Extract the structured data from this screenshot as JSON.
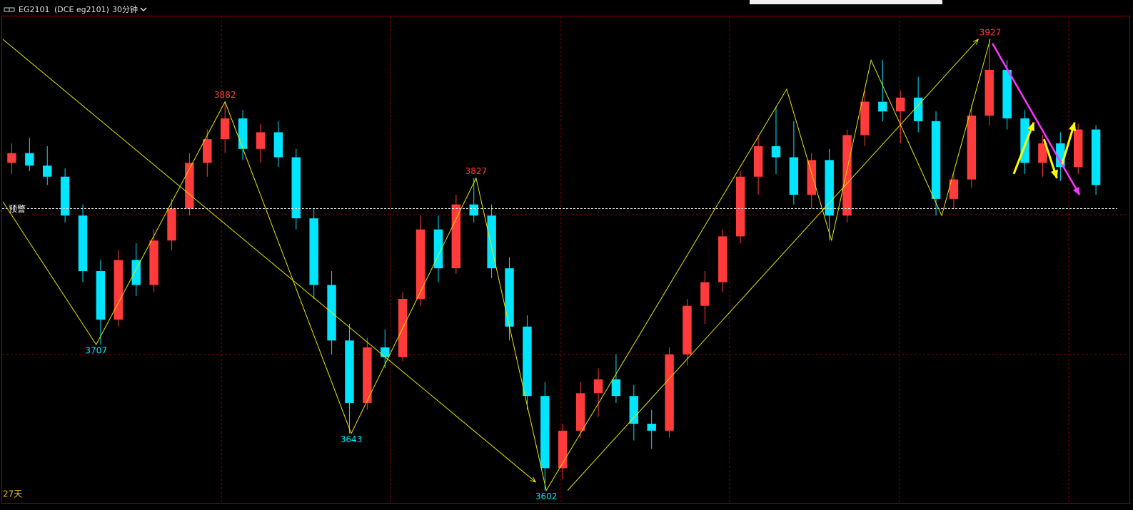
{
  "header": {
    "symbol": "EG2101",
    "exchange": "(DCE eg2101)",
    "period": "30分钟"
  },
  "chart_data": {
    "type": "candlestick",
    "xlim": [
      0,
      250
    ],
    "ylim": [
      3593,
      3944
    ],
    "grid": true,
    "up_color": "#ff3b3b",
    "down_color": "#00e5ff",
    "x": [
      2,
      6,
      10,
      14,
      18,
      22,
      26,
      30,
      34,
      38,
      42,
      46,
      50,
      54,
      58,
      62,
      66,
      70,
      74,
      78,
      82,
      86,
      90,
      94,
      98,
      102,
      106,
      110,
      114,
      118,
      122,
      126,
      130,
      134,
      138,
      142,
      146,
      150,
      154,
      158,
      162,
      166,
      170,
      174,
      178,
      182,
      186,
      190,
      194,
      198,
      202,
      206,
      210,
      214,
      218,
      222,
      226,
      230,
      234,
      238,
      242,
      246
    ],
    "open": [
      3838,
      3845,
      3836,
      3828,
      3800,
      3760,
      3725,
      3768,
      3750,
      3782,
      3805,
      3838,
      3855,
      3870,
      3848,
      3860,
      3842,
      3798,
      3750,
      3710,
      3665,
      3705,
      3698,
      3740,
      3790,
      3762,
      3808,
      3800,
      3762,
      3720,
      3670,
      3618,
      3645,
      3672,
      3682,
      3670,
      3650,
      3645,
      3700,
      3735,
      3752,
      3785,
      3828,
      3850,
      3842,
      3815,
      3840,
      3800,
      3858,
      3882,
      3875,
      3885,
      3868,
      3812,
      3826,
      3872,
      3905,
      3870,
      3838,
      3852,
      3835,
      3862
    ],
    "high": [
      3852,
      3856,
      3850,
      3834,
      3808,
      3768,
      3775,
      3780,
      3790,
      3812,
      3845,
      3862,
      3882,
      3876,
      3866,
      3868,
      3848,
      3805,
      3760,
      3722,
      3712,
      3718,
      3745,
      3800,
      3800,
      3815,
      3827,
      3808,
      3770,
      3728,
      3680,
      3650,
      3680,
      3690,
      3700,
      3678,
      3660,
      3705,
      3740,
      3760,
      3790,
      3832,
      3858,
      3878,
      3868,
      3845,
      3848,
      3862,
      3890,
      3912,
      3890,
      3900,
      3875,
      3830,
      3880,
      3927,
      3912,
      3876,
      3858,
      3860,
      3866,
      3865
    ],
    "low": [
      3830,
      3832,
      3822,
      3795,
      3752,
      3707,
      3720,
      3742,
      3745,
      3775,
      3800,
      3828,
      3845,
      3840,
      3838,
      3835,
      3790,
      3740,
      3700,
      3643,
      3660,
      3690,
      3695,
      3735,
      3752,
      3758,
      3795,
      3755,
      3710,
      3660,
      3602,
      3610,
      3640,
      3655,
      3665,
      3638,
      3632,
      3640,
      3692,
      3722,
      3745,
      3780,
      3815,
      3830,
      3808,
      3805,
      3782,
      3795,
      3850,
      3868,
      3852,
      3860,
      3800,
      3805,
      3820,
      3865,
      3862,
      3830,
      3828,
      3825,
      3830,
      3815
    ],
    "close": [
      3845,
      3836,
      3828,
      3800,
      3760,
      3725,
      3768,
      3750,
      3782,
      3805,
      3838,
      3855,
      3870,
      3848,
      3860,
      3842,
      3798,
      3750,
      3710,
      3665,
      3705,
      3698,
      3740,
      3790,
      3762,
      3808,
      3800,
      3762,
      3720,
      3670,
      3618,
      3645,
      3672,
      3682,
      3670,
      3650,
      3645,
      3700,
      3735,
      3752,
      3785,
      3828,
      3850,
      3842,
      3815,
      3840,
      3800,
      3858,
      3882,
      3875,
      3885,
      3868,
      3812,
      3826,
      3872,
      3905,
      3870,
      3838,
      3852,
      3835,
      3862,
      3822
    ],
    "alert": {
      "label": "预警",
      "value": 3805,
      "color": "#ffffff"
    },
    "lines": [
      {
        "color": "#e6e600",
        "width": 1,
        "arrow": false,
        "x": [
          0,
          21,
          50,
          78.4,
          106.5,
          122.3,
          176.4,
          186.5,
          195.4,
          211.3,
          222.2
        ],
        "values": [
          3810,
          3707,
          3882,
          3643,
          3827,
          3602,
          3891,
          3782,
          3912,
          3800,
          3927
        ]
      },
      {
        "color": "#e6e600",
        "width": 1,
        "arrow": true,
        "x": [
          0,
          119.9
        ],
        "values": [
          3927,
          3608
        ]
      },
      {
        "color": "#e6e600",
        "width": 1,
        "arrow": true,
        "x": [
          127.1,
          219.5
        ],
        "values": [
          3602,
          3927
        ]
      },
      {
        "color": "#ff33ff",
        "width": 2.5,
        "arrow": true,
        "x": [
          222.7,
          242.3
        ],
        "values": [
          3924,
          3815
        ]
      },
      {
        "color": "#ffff00",
        "width": 3,
        "arrow": true,
        "x": [
          227.5,
          232
        ],
        "values": [
          3830,
          3867
        ]
      },
      {
        "color": "#ffff00",
        "width": 3,
        "arrow": true,
        "x": [
          234.3,
          237.2
        ],
        "values": [
          3855,
          3827
        ]
      },
      {
        "color": "#ffff00",
        "width": 3,
        "arrow": true,
        "x": [
          238.4,
          241.2
        ],
        "values": [
          3837,
          3867
        ]
      }
    ],
    "pivots": [
      {
        "x": 21,
        "value": 3707,
        "color": "#00e5ff",
        "position": "below"
      },
      {
        "x": 50,
        "value": 3882,
        "color": "#ff3b3b",
        "position": "above"
      },
      {
        "x": 78.4,
        "value": 3643,
        "color": "#00e5ff",
        "position": "below"
      },
      {
        "x": 106.5,
        "value": 3827,
        "color": "#ff3b3b",
        "position": "above"
      },
      {
        "x": 122.3,
        "value": 3602,
        "color": "#00e5ff",
        "position": "below"
      },
      {
        "x": 222.2,
        "value": 3927,
        "color": "#ff3b3b",
        "position": "above"
      }
    ],
    "footer_label": "27天"
  }
}
